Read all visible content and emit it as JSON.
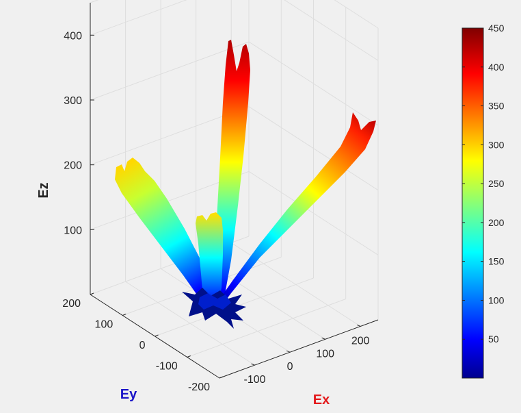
{
  "chart_data": {
    "type": "surface3d",
    "title": "",
    "xlabel": "Ex",
    "ylabel": "Ey",
    "zlabel": "Ez",
    "x_ticks": [
      -100,
      0,
      100,
      200
    ],
    "y_ticks": [
      -200,
      -100,
      0,
      100,
      200
    ],
    "z_ticks": [
      100,
      200,
      300,
      400
    ],
    "xlim": [
      -200,
      250
    ],
    "ylim": [
      -200,
      200
    ],
    "zlim": [
      0,
      450
    ],
    "colormap": "jet",
    "clim": [
      0,
      450
    ],
    "colorbar_ticks": [
      50,
      100,
      150,
      200,
      250,
      300,
      350,
      400,
      450
    ],
    "grid": true,
    "lobes": [
      {
        "direction_x": -20,
        "direction_y": -160,
        "peak_z": 290
      },
      {
        "direction_x": 40,
        "direction_y": 80,
        "peak_z": 450
      },
      {
        "direction_x": 230,
        "direction_y": 40,
        "peak_z": 380
      },
      {
        "direction_x": -20,
        "direction_y": 0,
        "peak_z": 220
      }
    ],
    "label_colors": {
      "xlabel": "#e31a1c",
      "ylabel": "#1a14c8",
      "zlabel": "#262626"
    }
  }
}
